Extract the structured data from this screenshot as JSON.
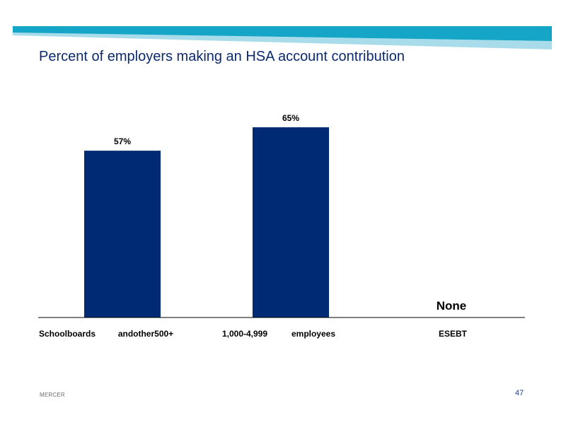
{
  "slide": {
    "title": "Percent of employers making an HSA account contribution",
    "footer_brand": "MERCER",
    "page_number": "47"
  },
  "colors": {
    "bar": "#002a73",
    "title": "#0b2a6f",
    "band_dark": "#14a5c7",
    "band_light": "#a8dcea",
    "axis": "#000000"
  },
  "chart_data": {
    "type": "bar",
    "categories": [
      "Schoolboards andother500+",
      "1,000-4,999 employees",
      "ESEBT"
    ],
    "category_label_parts": [
      [
        "Schoolboards",
        "andother500+"
      ],
      [
        "1,000-4,999",
        "employees"
      ],
      [
        "ESEBT"
      ]
    ],
    "values": [
      57,
      65,
      null
    ],
    "value_labels": [
      "57%",
      "65%",
      "None"
    ],
    "ylim": [
      0,
      100
    ],
    "grid": false,
    "legend": "none"
  }
}
